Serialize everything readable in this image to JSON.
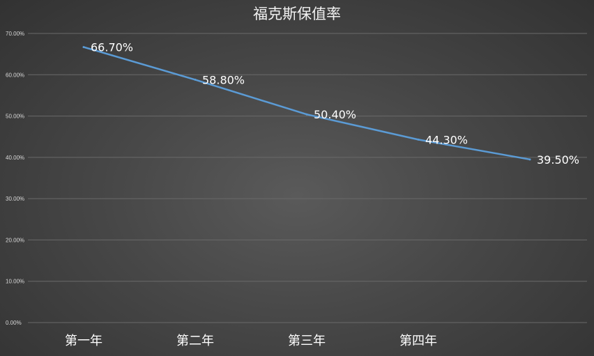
{
  "chart_data": {
    "type": "line",
    "title": "福克斯保值率",
    "categories": [
      "第一年",
      "第二年",
      "第三年",
      "第四年",
      ""
    ],
    "series": [
      {
        "values": [
          66.7,
          58.8,
          50.4,
          44.3,
          39.5
        ]
      }
    ],
    "data_labels": [
      "66.70%",
      "58.80%",
      "50.40%",
      "44.30%",
      "39.50%"
    ],
    "y_ticks": [
      "0.00%",
      "10.00%",
      "20.00%",
      "30.00%",
      "40.00%",
      "50.00%",
      "60.00%",
      "70.00%"
    ],
    "ylim": [
      0,
      70
    ],
    "grid": true,
    "legend": "none",
    "colors": {
      "line": "#5b9bd5",
      "text": "#ffffff"
    }
  }
}
